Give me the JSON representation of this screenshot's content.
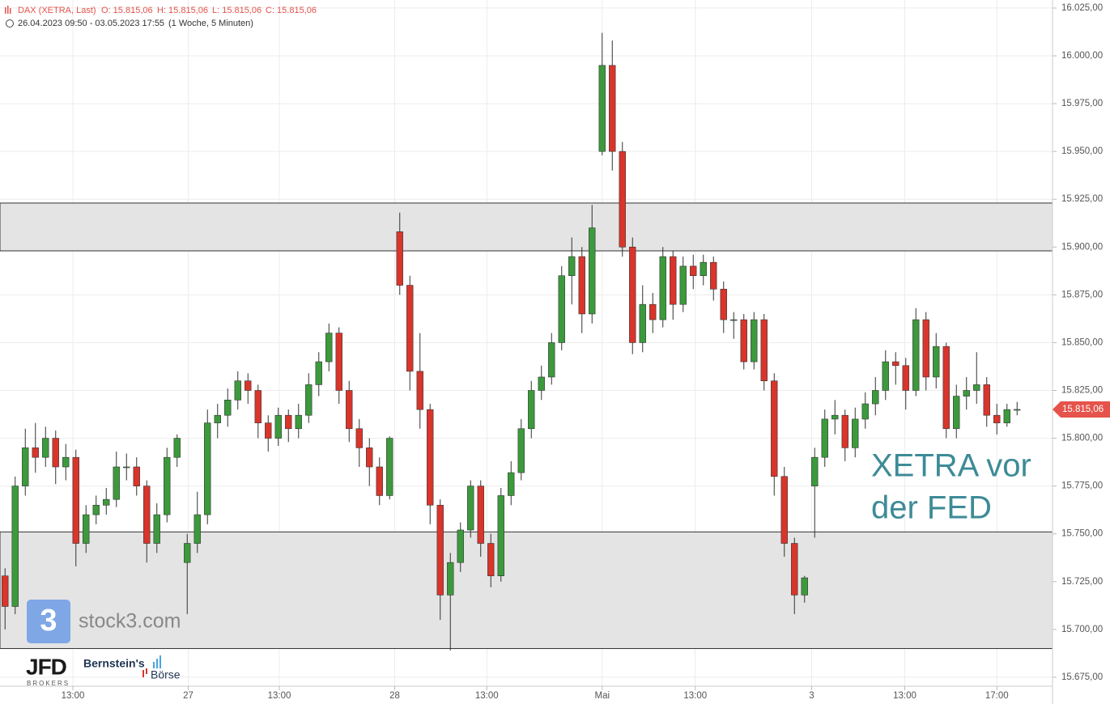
{
  "chart_data": {
    "type": "candlestick",
    "title": "DAX (XETRA, Last)",
    "ohlc_labels": [
      "O: 15.815,06",
      "H: 15.815,06",
      "L: 15.815,06",
      "C: 15.815,06"
    ],
    "date_range": "26.04.2023 09:50 - 03.05.2023 17:55",
    "period": "(1 Woche, 5 Minuten)",
    "x": [
      0,
      1,
      2,
      3,
      4,
      5,
      6,
      7,
      8,
      9,
      10,
      11,
      12,
      13,
      14,
      15,
      16,
      17,
      18,
      19,
      20,
      21,
      22,
      23,
      24,
      25,
      26,
      27,
      28,
      29,
      30,
      31,
      32,
      33,
      34,
      35,
      36,
      37,
      38,
      39,
      40,
      41,
      42,
      43,
      44,
      45,
      46,
      47,
      48,
      49,
      50,
      51,
      52,
      53,
      54,
      55,
      56,
      57,
      58,
      59,
      60,
      61,
      62,
      63,
      64,
      65,
      66,
      67,
      68,
      69,
      70,
      71,
      72,
      73,
      74,
      75,
      76,
      77,
      78,
      79,
      80,
      81,
      82,
      83,
      84,
      85,
      86,
      87,
      88,
      89,
      90,
      91,
      92,
      93,
      94,
      95,
      96,
      97,
      98,
      99,
      100
    ],
    "open": [
      15728,
      15712,
      15775,
      15795,
      15790,
      15800,
      15785,
      15790,
      15745,
      15760,
      15765,
      15768,
      15785,
      15785,
      15775,
      15745,
      15760,
      15790,
      15735,
      15745,
      15760,
      15808,
      15812,
      15820,
      15830,
      15825,
      15808,
      15800,
      15812,
      15805,
      15812,
      15828,
      15840,
      15855,
      15825,
      15805,
      15795,
      15785,
      15770,
      15908,
      15880,
      15835,
      15815,
      15765,
      15718,
      15735,
      15752,
      15775,
      15745,
      15728,
      15770,
      15782,
      15805,
      15825,
      15832,
      15850,
      15885,
      15895,
      15865,
      15950,
      15995,
      15950,
      15900,
      15850,
      15870,
      15862,
      15895,
      15870,
      15890,
      15885,
      15892,
      15878,
      15862,
      15862,
      15840,
      15862,
      15830,
      15780,
      15745,
      15718,
      15775,
      15790,
      15810,
      15812,
      15795,
      15810,
      15818,
      15825,
      15840,
      15838,
      15825,
      15862,
      15832,
      15848,
      15805,
      15822,
      15825,
      15828,
      15812,
      15808,
      15815
    ],
    "high": [
      15732,
      15780,
      15805,
      15808,
      15806,
      15804,
      15797,
      15794,
      15765,
      15770,
      15774,
      15793,
      15792,
      15790,
      15778,
      15766,
      15795,
      15802,
      15750,
      15772,
      15815,
      15818,
      15826,
      15835,
      15834,
      15828,
      15812,
      15816,
      15815,
      15818,
      15834,
      15845,
      15860,
      15858,
      15830,
      15810,
      15800,
      15790,
      15801,
      15918,
      15885,
      15855,
      15818,
      15768,
      15740,
      15756,
      15778,
      15778,
      15750,
      15774,
      15788,
      15810,
      15830,
      15838,
      15855,
      15890,
      15905,
      15900,
      15922,
      16012,
      16008,
      15955,
      15905,
      15880,
      15876,
      15900,
      15898,
      15895,
      15896,
      15896,
      15895,
      15882,
      15866,
      15865,
      15866,
      15865,
      15834,
      15785,
      15748,
      15728,
      15795,
      15815,
      15820,
      15815,
      15816,
      15824,
      15832,
      15846,
      15845,
      15842,
      15868,
      15866,
      15855,
      15850,
      15828,
      15832,
      15845,
      15832,
      15818,
      15818,
      15819
    ],
    "low": [
      15700,
      15708,
      15770,
      15782,
      15785,
      15776,
      15778,
      15733,
      15740,
      15755,
      15760,
      15764,
      15778,
      15770,
      15735,
      15740,
      15756,
      15785,
      15708,
      15740,
      15755,
      15800,
      15806,
      15815,
      15818,
      15800,
      15793,
      15796,
      15798,
      15800,
      15808,
      15822,
      15835,
      15818,
      15798,
      15785,
      15775,
      15765,
      15768,
      15875,
      15825,
      15805,
      15755,
      15705,
      15689,
      15730,
      15748,
      15738,
      15722,
      15725,
      15765,
      15778,
      15800,
      15820,
      15828,
      15846,
      15870,
      15855,
      15860,
      15948,
      15940,
      15895,
      15844,
      15845,
      15855,
      15858,
      15862,
      15866,
      15878,
      15880,
      15872,
      15855,
      15852,
      15836,
      15836,
      15825,
      15770,
      15738,
      15708,
      15714,
      15748,
      15785,
      15802,
      15788,
      15790,
      15805,
      15812,
      15820,
      15828,
      15815,
      15822,
      15825,
      15826,
      15800,
      15800,
      15815,
      15818,
      15806,
      15802,
      15806,
      15812
    ],
    "close": [
      15712,
      15775,
      15795,
      15790,
      15800,
      15785,
      15790,
      15745,
      15760,
      15765,
      15768,
      15785,
      15785,
      15775,
      15745,
      15760,
      15790,
      15800,
      15745,
      15760,
      15808,
      15812,
      15820,
      15830,
      15825,
      15808,
      15800,
      15812,
      15805,
      15812,
      15828,
      15840,
      15855,
      15825,
      15805,
      15795,
      15785,
      15770,
      15800,
      15880,
      15835,
      15815,
      15765,
      15718,
      15735,
      15752,
      15775,
      15745,
      15728,
      15770,
      15782,
      15805,
      15825,
      15832,
      15850,
      15885,
      15895,
      15865,
      15910,
      15995,
      15950,
      15900,
      15850,
      15870,
      15862,
      15895,
      15870,
      15890,
      15885,
      15892,
      15878,
      15862,
      15862,
      15840,
      15862,
      15830,
      15780,
      15745,
      15718,
      15727,
      15790,
      15810,
      15812,
      15795,
      15810,
      15818,
      15825,
      15840,
      15838,
      15825,
      15862,
      15832,
      15848,
      15805,
      15822,
      15825,
      15828,
      15812,
      15808,
      15815,
      15815.06
    ],
    "up_color": "#3c9a3c",
    "down_color": "#d9352b",
    "xlim": [
      -0.5,
      103.5
    ],
    "ylim": [
      15661,
      16029.2
    ],
    "yticks": [
      {
        "value": 15675,
        "label": "15.675,00"
      },
      {
        "value": 15700,
        "label": "15.700,00"
      },
      {
        "value": 15725,
        "label": "15.725,00"
      },
      {
        "value": 15750,
        "label": "15.750,00"
      },
      {
        "value": 15775,
        "label": "15.775,00"
      },
      {
        "value": 15800,
        "label": "15.800,00"
      },
      {
        "value": 15825,
        "label": "15.825,00"
      },
      {
        "value": 15850,
        "label": "15.850,00"
      },
      {
        "value": 15875,
        "label": "15.875,00"
      },
      {
        "value": 15900,
        "label": "15.900,00"
      },
      {
        "value": 15925,
        "label": "15.925,00"
      },
      {
        "value": 15950,
        "label": "15.950,00"
      },
      {
        "value": 15975,
        "label": "15.975,00"
      },
      {
        "value": 16000,
        "label": "16.000,00"
      },
      {
        "value": 16025,
        "label": "16.025,00"
      }
    ],
    "xticks": [
      {
        "value": 6.7,
        "label": "13:00"
      },
      {
        "value": 18.1,
        "label": "27"
      },
      {
        "value": 27.1,
        "label": "13:00"
      },
      {
        "value": 38.5,
        "label": "28"
      },
      {
        "value": 47.6,
        "label": "13:00"
      },
      {
        "value": 59,
        "label": "Mai"
      },
      {
        "value": 68.2,
        "label": "13:00"
      },
      {
        "value": 79.7,
        "label": "3"
      },
      {
        "value": 88.9,
        "label": "13:00"
      },
      {
        "value": 98,
        "label": "17:00"
      }
    ],
    "grid": true,
    "zones": [
      {
        "from": 15898,
        "to": 15923
      },
      {
        "from": 15690,
        "to": 15751
      }
    ],
    "zone_color": "#e4e4e4",
    "annotation": [
      "XETRA vor",
      "der FED"
    ],
    "annotation_color": "#3d8b97",
    "last_price": {
      "value": 15815.06,
      "label": "15.815,06"
    },
    "last_price_color": "#e5534b"
  },
  "logos": {
    "stock3_icon": "3",
    "stock3": "stock3.com",
    "jfd": "JFD",
    "jfd_sub": "BROKERS",
    "bernstein": "Bernstein's",
    "boerse": "Börse"
  }
}
